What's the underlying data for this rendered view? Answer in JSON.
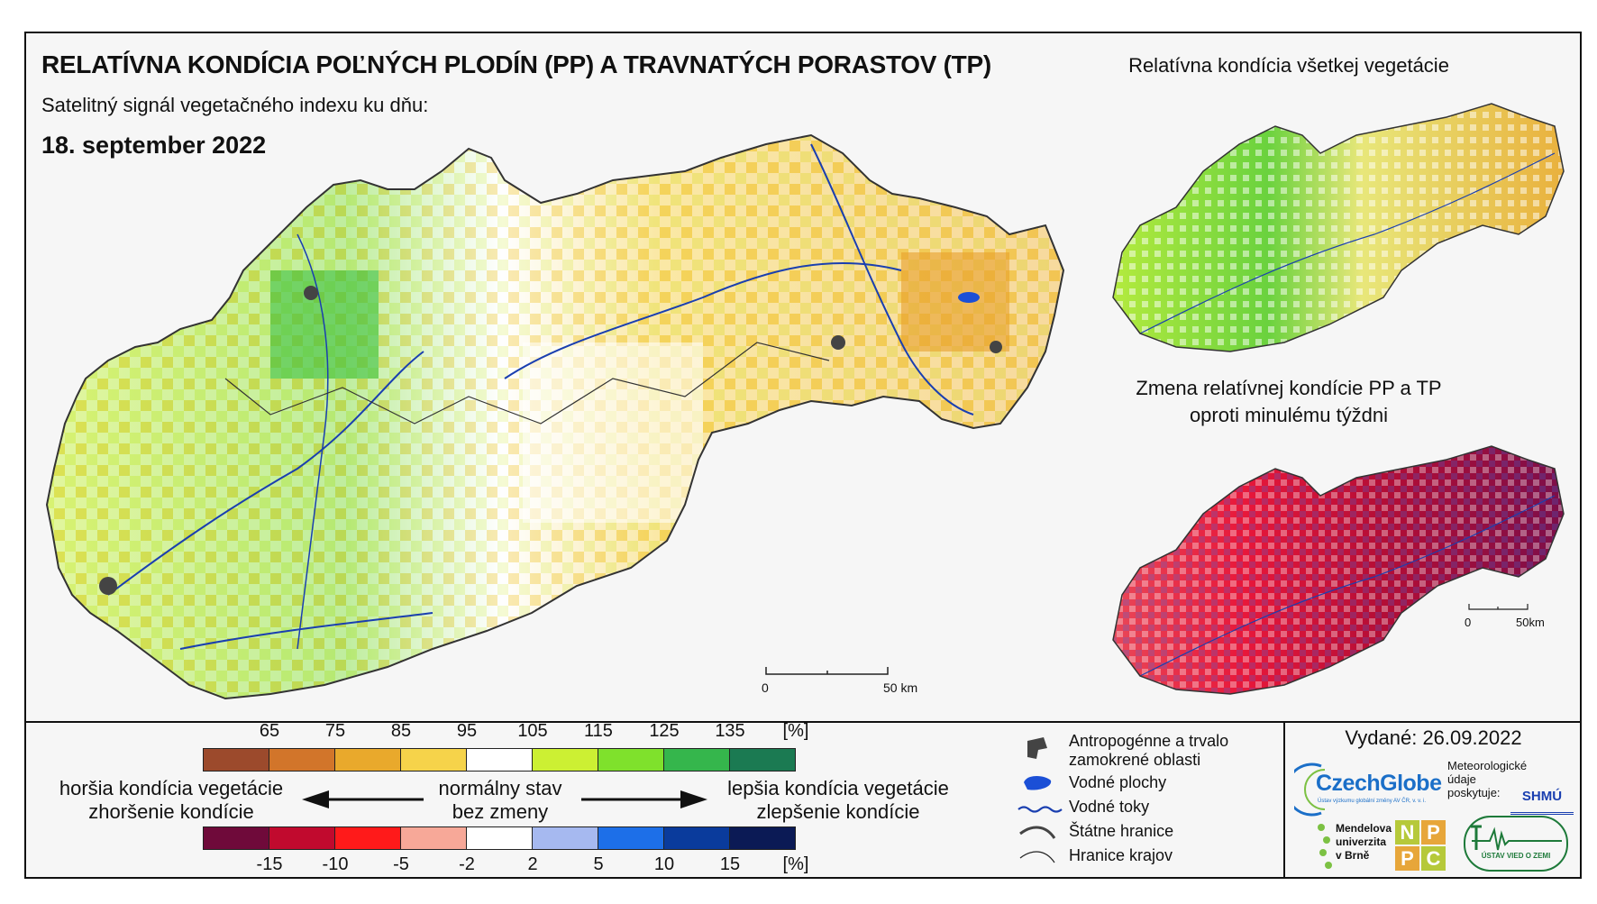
{
  "header": {
    "title": "RELATÍVNA KONDÍCIA POĽNÝCH PLODÍN (PP) A TRAVNATÝCH PORASTOV (TP)",
    "subtitle": "Satelitný signál vegetačného indexu ku dňu:",
    "date": "18. september 2022"
  },
  "maps": {
    "inset_top_title": "Relatívna kondícia všetkej vegetácie",
    "inset_bottom_title_line1": "Zmena relatívnej kondície PP a TP",
    "inset_bottom_title_line2": "oproti minulému týždni",
    "main_scale": {
      "start": "0",
      "end": "50 km"
    },
    "inset_scale": {
      "start": "0",
      "end": "50km"
    }
  },
  "legend": {
    "condition_ticks": [
      "65",
      "75",
      "85",
      "95",
      "105",
      "115",
      "125",
      "135",
      "[%]"
    ],
    "condition_colors": [
      "#9c4a2c",
      "#d2752a",
      "#e9a92c",
      "#f6d34a",
      "#ffffff",
      "#ccf033",
      "#7fe12c",
      "#35b64c",
      "#1b7a52"
    ],
    "change_ticks": [
      "-15",
      "-10",
      "-5",
      "-2",
      "2",
      "5",
      "10",
      "15",
      "[%]"
    ],
    "change_colors": [
      "#6f0a3a",
      "#c10a2e",
      "#ff1a1a",
      "#f7a898",
      "#ffffff",
      "#a6b9f0",
      "#1d6fe8",
      "#0a3b9c",
      "#0b1a55"
    ],
    "worse_line1": "horšia kondícia vegetácie",
    "worse_line2": "zhoršenie kondície",
    "normal_line1": "normálny stav",
    "normal_line2": "bez zmeny",
    "better_line1": "lepšia kondícia vegetácie",
    "better_line2": "zlepšenie kondície"
  },
  "symbols": {
    "urban_line1": "Antropogénne a trvalo",
    "urban_line2": "zamokrené oblasti",
    "water_bodies": "Vodné plochy",
    "rivers": "Vodné toky",
    "state_border": "Štátne hranice",
    "region_border": "Hranice krajov"
  },
  "footer": {
    "issued": "Vydané: 26.09.2022",
    "czechglobe": "CzechGlobe",
    "czechglobe_sub": "Ústav výzkumu globální změny AV ČR, v. v. i.",
    "meteo_line1": "Meteorologické",
    "meteo_line2": "údaje",
    "meteo_line3": "poskytuje:",
    "shmu": "SHMÚ",
    "mendel_line1": "Mendelova",
    "mendel_line2": "univerzita",
    "mendel_line3": "v Brně",
    "nppc": [
      "N",
      "P",
      "P",
      "C"
    ],
    "uvz": "ÚSTAV VIED O ZEMI"
  },
  "colors": {
    "river": "#1a3fb0",
    "urban": "#444444",
    "water": "#1b4fd6",
    "border": "#333333"
  }
}
